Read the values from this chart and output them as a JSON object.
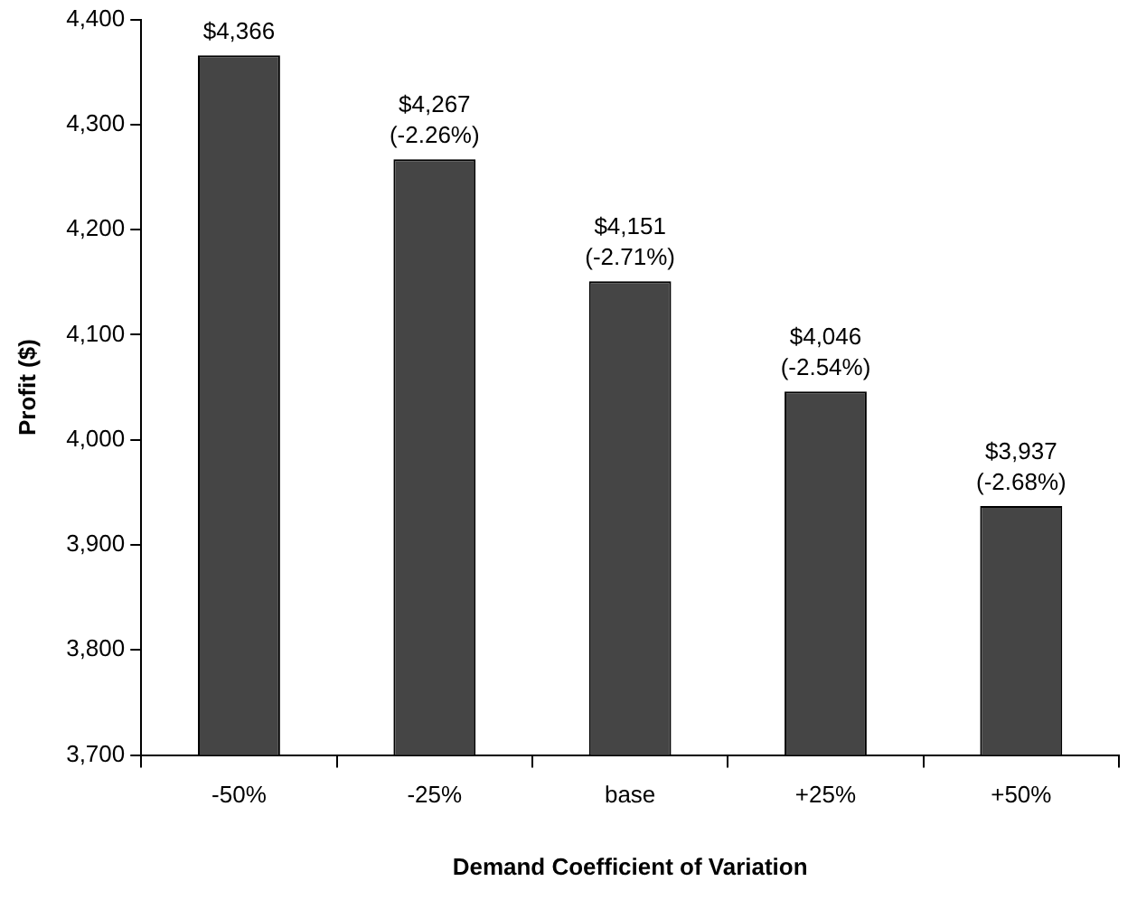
{
  "chart_data": {
    "type": "bar",
    "xlabel": "Demand Coefficient of Variation",
    "ylabel": "Profit ($)",
    "categories": [
      "-50%",
      "-25%",
      "base",
      "+25%",
      "+50%"
    ],
    "values": [
      4366,
      4267,
      4151,
      4046,
      3937
    ],
    "value_labels": [
      "$4,366",
      "$4,267\n(-2.26%)",
      "$4,151\n(-2.71%)",
      "$4,046\n(-2.54%)",
      "$3,937\n(-2.68%)"
    ],
    "color": "#454545",
    "ylim": [
      3700,
      4400
    ],
    "yticks": [
      {
        "value": 3700,
        "label": "3,700"
      },
      {
        "value": 3800,
        "label": "3,800"
      },
      {
        "value": 3900,
        "label": "3,900"
      },
      {
        "value": 4000,
        "label": "4,000"
      },
      {
        "value": 4100,
        "label": "4,100"
      },
      {
        "value": 4200,
        "label": "4,200"
      },
      {
        "value": 4300,
        "label": "4,300"
      },
      {
        "value": 4400,
        "label": "4,400"
      }
    ],
    "grid": false,
    "legend": false
  }
}
